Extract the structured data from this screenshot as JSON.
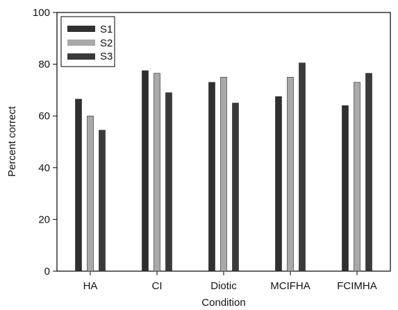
{
  "chart_data": {
    "type": "bar",
    "title": "",
    "xlabel": "Condition",
    "ylabel": "Percent correct",
    "ylim": [
      0,
      100
    ],
    "yticks": [
      0,
      20,
      40,
      60,
      80,
      100
    ],
    "grid": false,
    "legend_position": "top-left",
    "categories": [
      "HA",
      "CI",
      "Diotic",
      "MCIFHA",
      "FCIMHA"
    ],
    "series": [
      {
        "name": "S1",
        "values": [
          66.5,
          77.5,
          73,
          67.5,
          64
        ],
        "color": "#2f2f2f"
      },
      {
        "name": "S2",
        "values": [
          60,
          76.5,
          75,
          75,
          73
        ],
        "color": "#a9a9a9"
      },
      {
        "name": "S3",
        "values": [
          54.5,
          69,
          65,
          80.5,
          76.5
        ],
        "color": "#3a3a3a"
      }
    ]
  }
}
